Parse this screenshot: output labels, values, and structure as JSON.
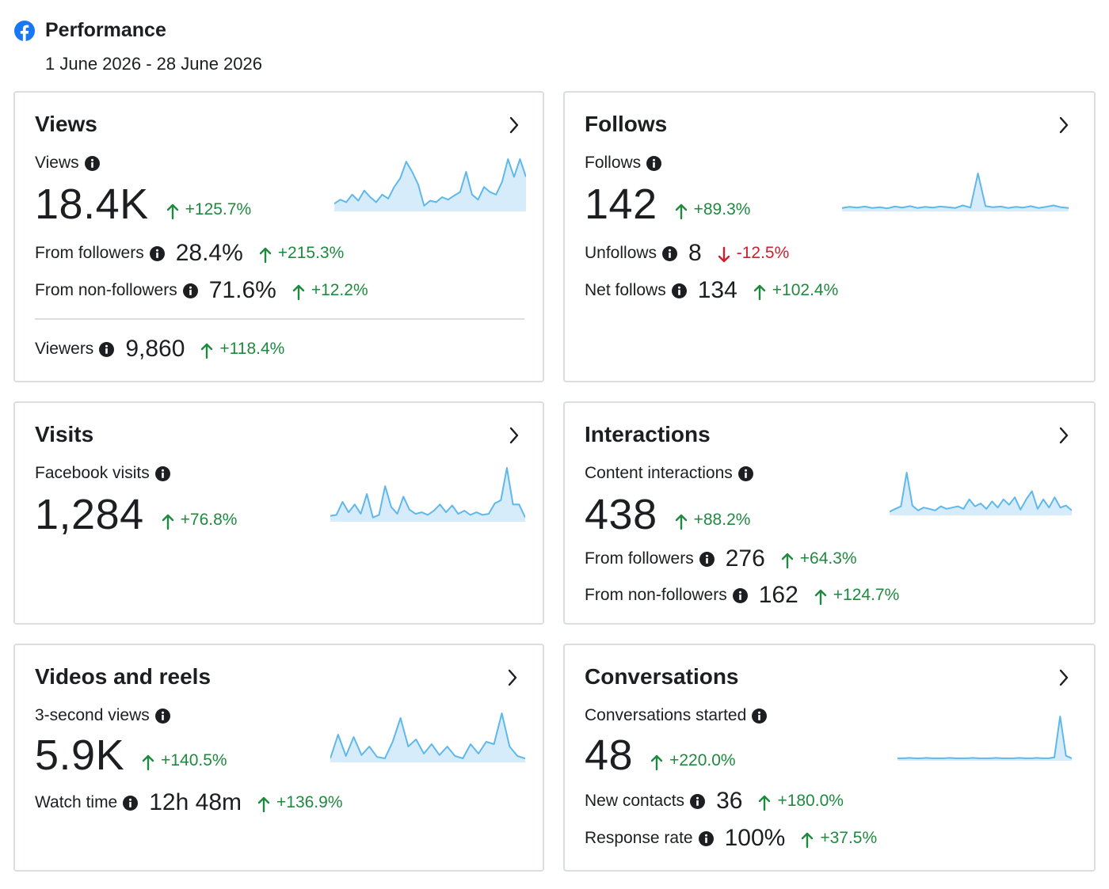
{
  "header": {
    "title": "Performance",
    "date_range": "1 June 2026 - 28 June 2026",
    "brand_color": "#1877f2"
  },
  "colors": {
    "positive": "#1f8a3f",
    "negative": "#d31d2c",
    "sparkline_stroke": "#5fb8ec",
    "sparkline_fill": "#d7ecfa"
  },
  "cards": {
    "views": {
      "title": "Views",
      "primary_label": "Views",
      "primary_value": "18.4K",
      "primary_change": "+125.7%",
      "from_followers_label": "From followers",
      "from_followers_value": "28.4%",
      "from_followers_change": "+215.3%",
      "from_non_followers_label": "From non-followers",
      "from_non_followers_value": "71.6%",
      "from_non_followers_change": "+12.2%",
      "viewers_label": "Viewers",
      "viewers_value": "9,860",
      "viewers_change": "+118.4%"
    },
    "follows": {
      "title": "Follows",
      "primary_label": "Follows",
      "primary_value": "142",
      "primary_change": "+89.3%",
      "unfollows_label": "Unfollows",
      "unfollows_value": "8",
      "unfollows_change": "-12.5%",
      "net_label": "Net follows",
      "net_value": "134",
      "net_change": "+102.4%"
    },
    "visits": {
      "title": "Visits",
      "primary_label": "Facebook visits",
      "primary_value": "1,284",
      "primary_change": "+76.8%"
    },
    "interactions": {
      "title": "Interactions",
      "primary_label": "Content interactions",
      "primary_value": "438",
      "primary_change": "+88.2%",
      "from_followers_label": "From followers",
      "from_followers_value": "276",
      "from_followers_change": "+64.3%",
      "from_non_followers_label": "From non-followers",
      "from_non_followers_value": "162",
      "from_non_followers_change": "+124.7%"
    },
    "videos": {
      "title": "Videos and reels",
      "primary_label": "3-second views",
      "primary_value": "5.9K",
      "primary_change": "+140.5%",
      "watch_label": "Watch time",
      "watch_value": "12h 48m",
      "watch_change": "+136.9%"
    },
    "conversations": {
      "title": "Conversations",
      "primary_label": "Conversations started",
      "primary_value": "48",
      "primary_change": "+220.0%",
      "contacts_label": "New contacts",
      "contacts_value": "36",
      "contacts_change": "+180.0%",
      "response_label": "Response rate",
      "response_value": "100%",
      "response_change": "+37.5%"
    }
  },
  "sparklines": {
    "views": [
      0.12,
      0.2,
      0.15,
      0.3,
      0.18,
      0.38,
      0.25,
      0.15,
      0.3,
      0.22,
      0.45,
      0.62,
      0.95,
      0.75,
      0.5,
      0.08,
      0.18,
      0.15,
      0.25,
      0.2,
      0.28,
      0.35,
      0.75,
      0.3,
      0.2,
      0.45,
      0.35,
      0.3,
      0.55,
      1.0,
      0.65,
      1.0,
      0.65
    ],
    "follows": [
      0.05,
      0.08,
      0.06,
      0.09,
      0.05,
      0.07,
      0.04,
      0.09,
      0.06,
      0.1,
      0.05,
      0.08,
      0.06,
      0.09,
      0.07,
      0.05,
      0.12,
      0.06,
      1.0,
      0.1,
      0.07,
      0.09,
      0.05,
      0.08,
      0.06,
      0.1,
      0.05,
      0.08,
      0.12,
      0.07,
      0.05
    ],
    "visits": [
      0.08,
      0.1,
      0.35,
      0.15,
      0.3,
      0.12,
      0.5,
      0.05,
      0.1,
      0.65,
      0.25,
      0.12,
      0.45,
      0.2,
      0.12,
      0.15,
      0.1,
      0.18,
      0.3,
      0.15,
      0.28,
      0.12,
      0.18,
      0.1,
      0.15,
      0.1,
      0.12,
      0.32,
      0.38,
      1.0,
      0.3,
      0.3,
      0.05
    ],
    "interactions": [
      0.05,
      0.12,
      0.18,
      1.0,
      0.2,
      0.08,
      0.15,
      0.12,
      0.08,
      0.18,
      0.12,
      0.15,
      0.18,
      0.12,
      0.35,
      0.18,
      0.25,
      0.12,
      0.3,
      0.15,
      0.35,
      0.22,
      0.4,
      0.1,
      0.35,
      0.55,
      0.12,
      0.35,
      0.15,
      0.4,
      0.15,
      0.2,
      0.08
    ],
    "videos": [
      0.05,
      0.55,
      0.1,
      0.5,
      0.12,
      0.3,
      0.08,
      0.05,
      0.4,
      0.9,
      0.3,
      0.45,
      0.15,
      0.35,
      0.12,
      0.3,
      0.1,
      0.05,
      0.35,
      0.15,
      0.4,
      0.35,
      1.0,
      0.3,
      0.1,
      0.05
    ],
    "conversations": [
      0.02,
      0.02,
      0.03,
      0.02,
      0.02,
      0.03,
      0.02,
      0.02,
      0.02,
      0.03,
      0.02,
      0.02,
      0.02,
      0.03,
      0.02,
      0.02,
      0.02,
      0.03,
      0.02,
      0.02,
      0.02,
      0.03,
      0.02,
      0.02,
      0.03,
      0.02,
      0.02,
      0.04,
      1.0,
      0.08,
      0.02
    ]
  }
}
